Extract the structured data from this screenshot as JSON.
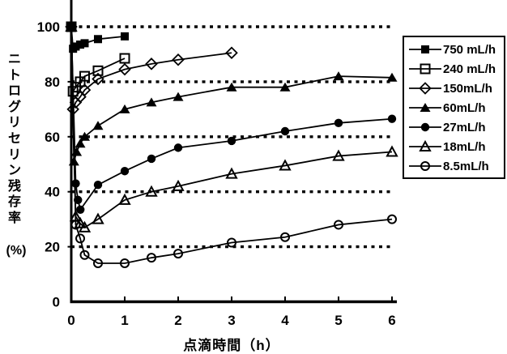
{
  "chart_data": {
    "type": "line",
    "title": "",
    "xlabel": "点滴時間（h）",
    "ylabel": "ニトログリセリン残存率",
    "ylabel_unit": "(%)",
    "xlim": [
      0,
      6
    ],
    "ylim": [
      0,
      100
    ],
    "x_ticks": [
      0,
      1,
      2,
      3,
      4,
      5,
      6
    ],
    "y_ticks": [
      0,
      20,
      40,
      60,
      80,
      100
    ],
    "grid": "horizontal-dotted",
    "legend_position": "right",
    "series": [
      {
        "name": "750 mL/h",
        "marker": "square-filled",
        "points": [
          [
            0,
            100
          ],
          [
            0.033,
            92
          ],
          [
            0.083,
            92.8
          ],
          [
            0.167,
            93.5
          ],
          [
            0.25,
            94
          ],
          [
            0.5,
            95.5
          ],
          [
            1,
            96.5
          ]
        ]
      },
      {
        "name": "240 mL/h",
        "marker": "square-open",
        "points": [
          [
            0,
            100
          ],
          [
            0.033,
            76.5
          ],
          [
            0.083,
            78
          ],
          [
            0.167,
            80
          ],
          [
            0.25,
            82
          ],
          [
            0.5,
            84
          ],
          [
            1,
            88.5
          ]
        ]
      },
      {
        "name": "150mL/h",
        "marker": "diamond-open",
        "points": [
          [
            0,
            100
          ],
          [
            0.033,
            70
          ],
          [
            0.083,
            72.5
          ],
          [
            0.167,
            74.5
          ],
          [
            0.25,
            77
          ],
          [
            0.5,
            81
          ],
          [
            1,
            84.5
          ],
          [
            1.5,
            86.5
          ],
          [
            2,
            88
          ],
          [
            3,
            90.5
          ]
        ]
      },
      {
        "name": "60mL/h",
        "marker": "triangle-filled",
        "points": [
          [
            0,
            100
          ],
          [
            0.05,
            51
          ],
          [
            0.1,
            54.5
          ],
          [
            0.167,
            57.5
          ],
          [
            0.25,
            60
          ],
          [
            0.5,
            64
          ],
          [
            1,
            70
          ],
          [
            1.5,
            72.5
          ],
          [
            2,
            74.5
          ],
          [
            3,
            78
          ],
          [
            4,
            78
          ],
          [
            5,
            82
          ],
          [
            6,
            81.5
          ]
        ]
      },
      {
        "name": "27mL/h",
        "marker": "circle-filled",
        "points": [
          [
            0,
            100
          ],
          [
            0.083,
            43
          ],
          [
            0.125,
            37
          ],
          [
            0.17,
            33.5
          ],
          [
            0.5,
            42.5
          ],
          [
            1,
            47.5
          ],
          [
            1.5,
            52
          ],
          [
            2,
            56
          ],
          [
            3,
            58.5
          ],
          [
            4,
            62
          ],
          [
            5,
            65
          ],
          [
            6,
            66.5
          ]
        ]
      },
      {
        "name": "18mL/h",
        "marker": "triangle-open",
        "points": [
          [
            0,
            100
          ],
          [
            0.083,
            31
          ],
          [
            0.167,
            28.5
          ],
          [
            0.25,
            27
          ],
          [
            0.5,
            30
          ],
          [
            1,
            37
          ],
          [
            1.5,
            40
          ],
          [
            2,
            42
          ],
          [
            3,
            46.5
          ],
          [
            4,
            49.5
          ],
          [
            5,
            53
          ],
          [
            6,
            54.5
          ]
        ]
      },
      {
        "name": "8.5mL/h",
        "marker": "circle-open",
        "points": [
          [
            0,
            100
          ],
          [
            0.083,
            28
          ],
          [
            0.167,
            23
          ],
          [
            0.25,
            17
          ],
          [
            0.5,
            14
          ],
          [
            1,
            14
          ],
          [
            1.5,
            16
          ],
          [
            2,
            17.5
          ],
          [
            3,
            21.5
          ],
          [
            4,
            23.5
          ],
          [
            5,
            28
          ],
          [
            6,
            30
          ]
        ]
      }
    ]
  },
  "colors": {
    "foreground": "#000000",
    "background": "#ffffff"
  }
}
